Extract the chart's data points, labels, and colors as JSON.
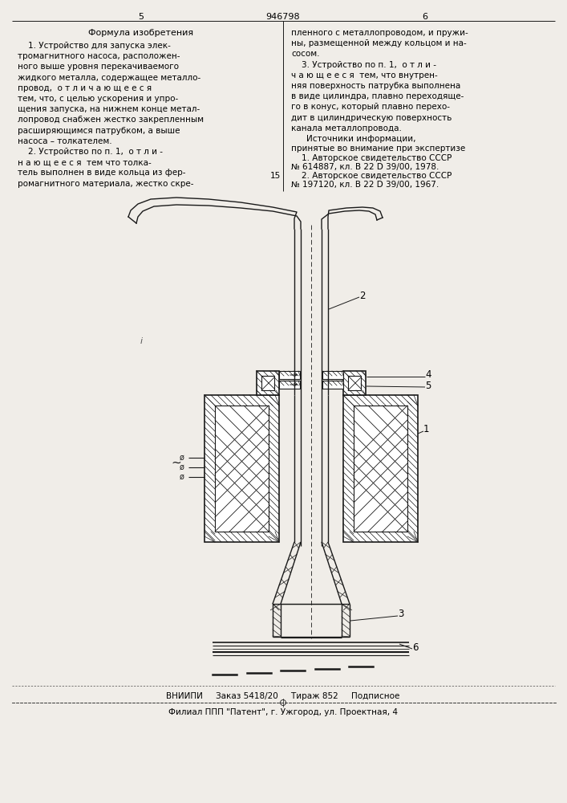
{
  "bg_color": "#f0ede8",
  "line_color": "#1a1a1a",
  "title_text": "946798",
  "page_left": "5",
  "page_right": "6",
  "footer1": "ВНИИПИ     Заказ 5418/20     Тираж 852     Подписное",
  "footer2": "Филиал ППП \"Патент\", г. Ужгород, ул. Проектная, 4"
}
